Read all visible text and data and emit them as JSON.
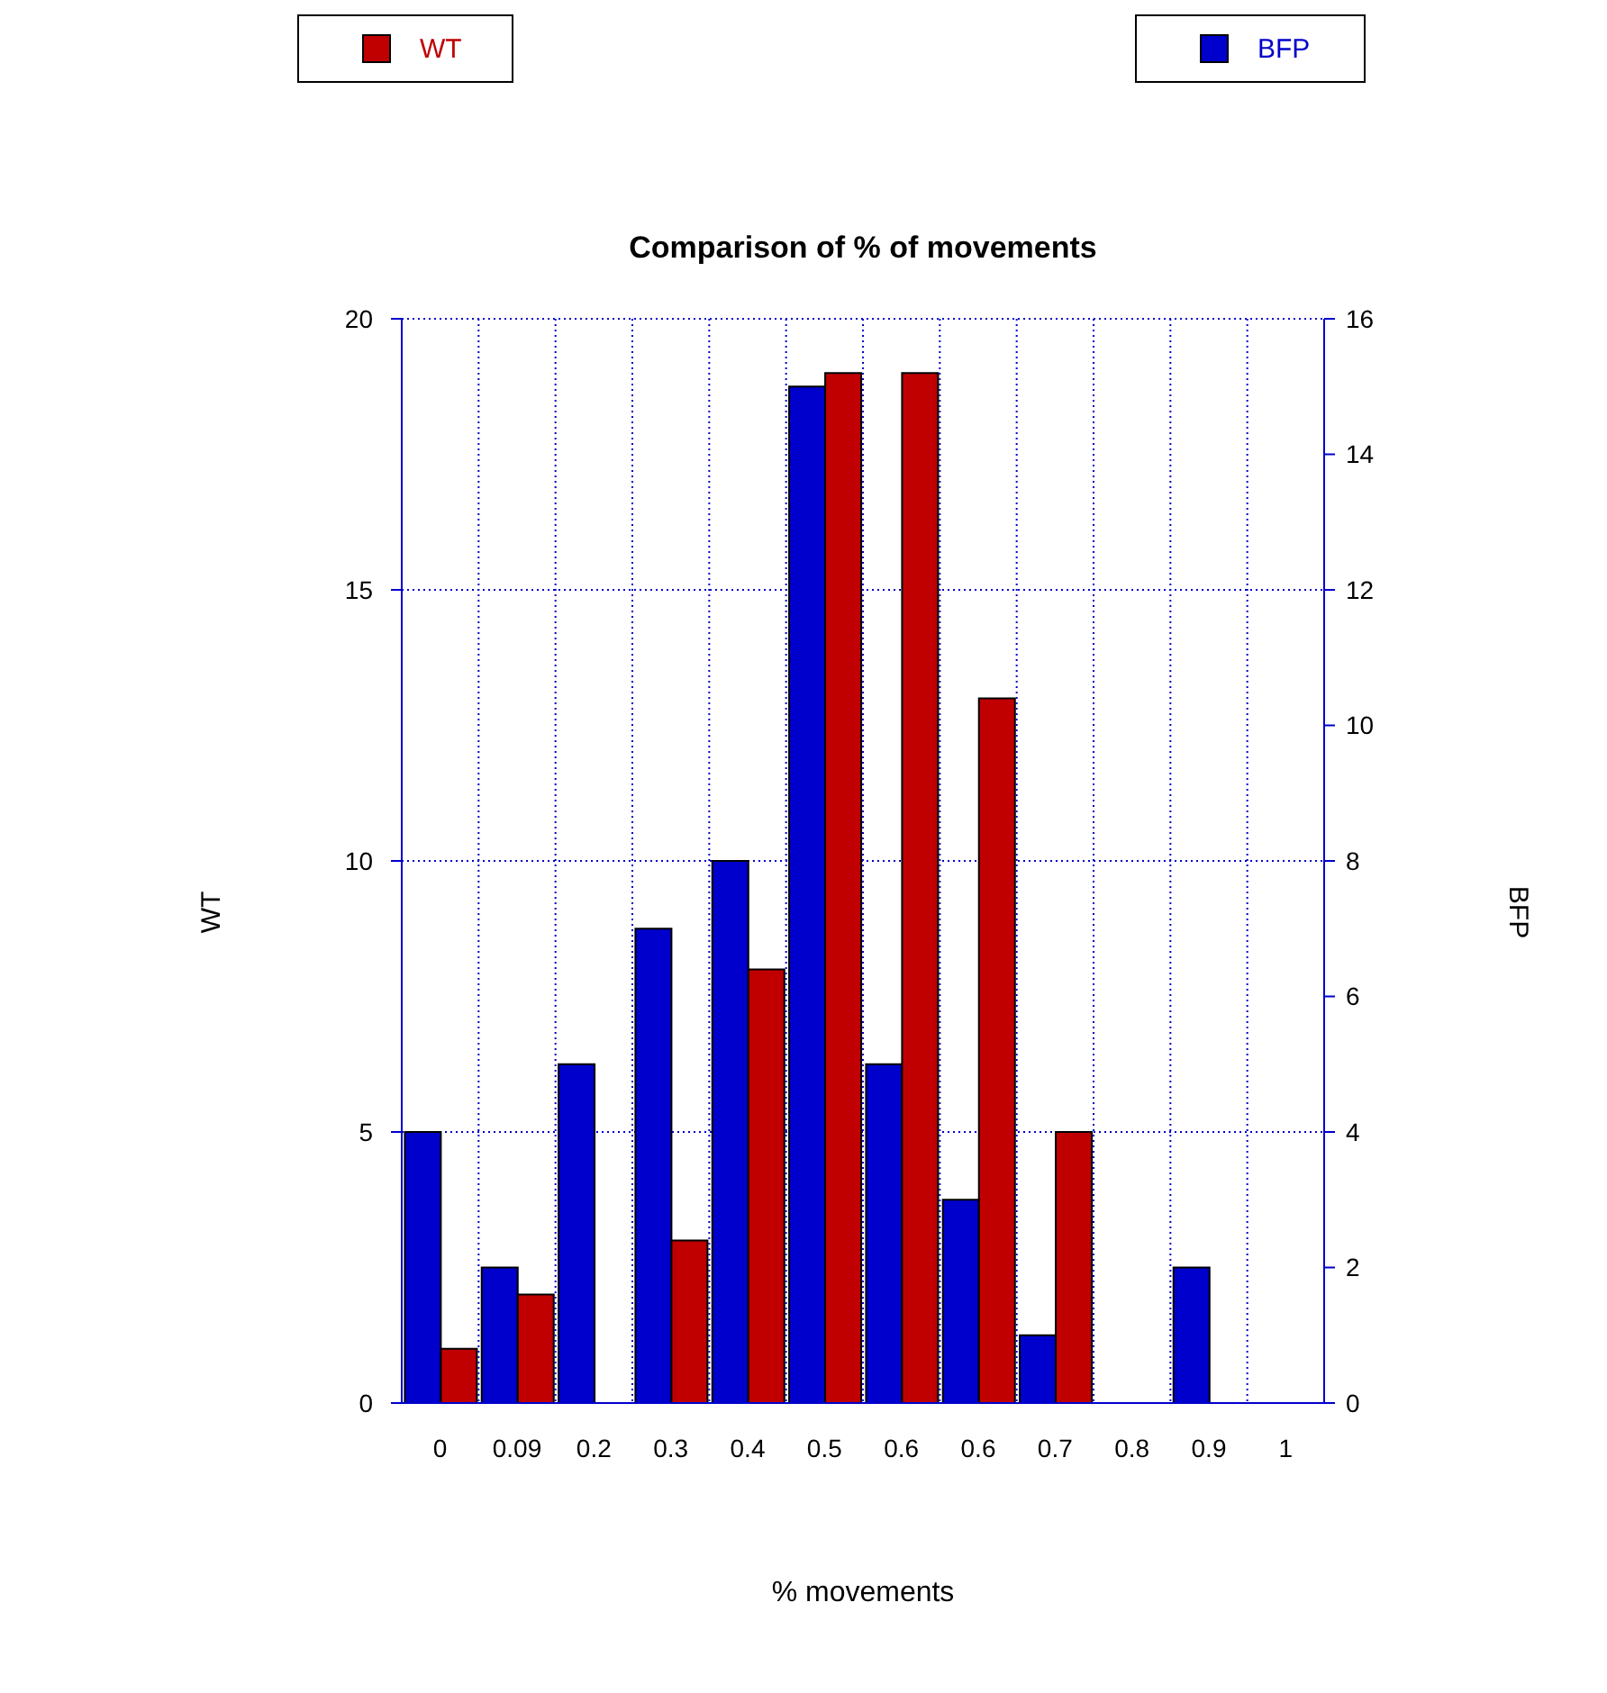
{
  "chart_data": {
    "type": "bar",
    "title": "Comparison of % of movements",
    "xlabel": "% movements",
    "ylabel": "WT",
    "y2label": "BFP",
    "categories": [
      "0",
      "0.09",
      "0.2",
      "0.3",
      "0.4",
      "0.5",
      "0.6",
      "0.6",
      "0.7",
      "0.8",
      "0.9",
      "1"
    ],
    "series": [
      {
        "name": "BFP",
        "color": "#0000cc",
        "axis": "y2",
        "values": [
          4,
          2,
          5,
          7,
          8,
          15,
          5,
          3,
          1,
          0,
          2,
          0
        ]
      },
      {
        "name": "WT",
        "color": "#c00000",
        "values": [
          1,
          2,
          0,
          3,
          8,
          19,
          19,
          13,
          5,
          0,
          0,
          0
        ]
      }
    ],
    "ylim": [
      0,
      20
    ],
    "yticks": [
      0,
      5,
      10,
      15,
      20
    ],
    "y2lim": [
      0,
      16
    ],
    "y2ticks": [
      0,
      2,
      4,
      6,
      8,
      10,
      12,
      14,
      16
    ],
    "grid": true,
    "legend": "top"
  }
}
